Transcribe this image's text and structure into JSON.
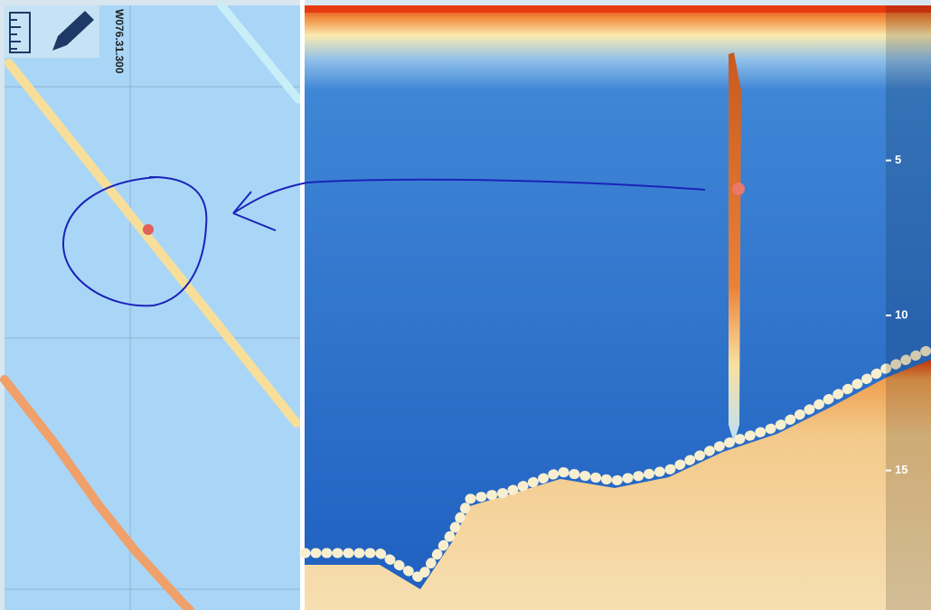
{
  "map": {
    "longitude_label": "W076.31.300"
  },
  "echogram": {
    "depth_range": [
      0,
      19.5
    ],
    "depth_ticks": [
      5,
      10,
      15
    ]
  }
}
